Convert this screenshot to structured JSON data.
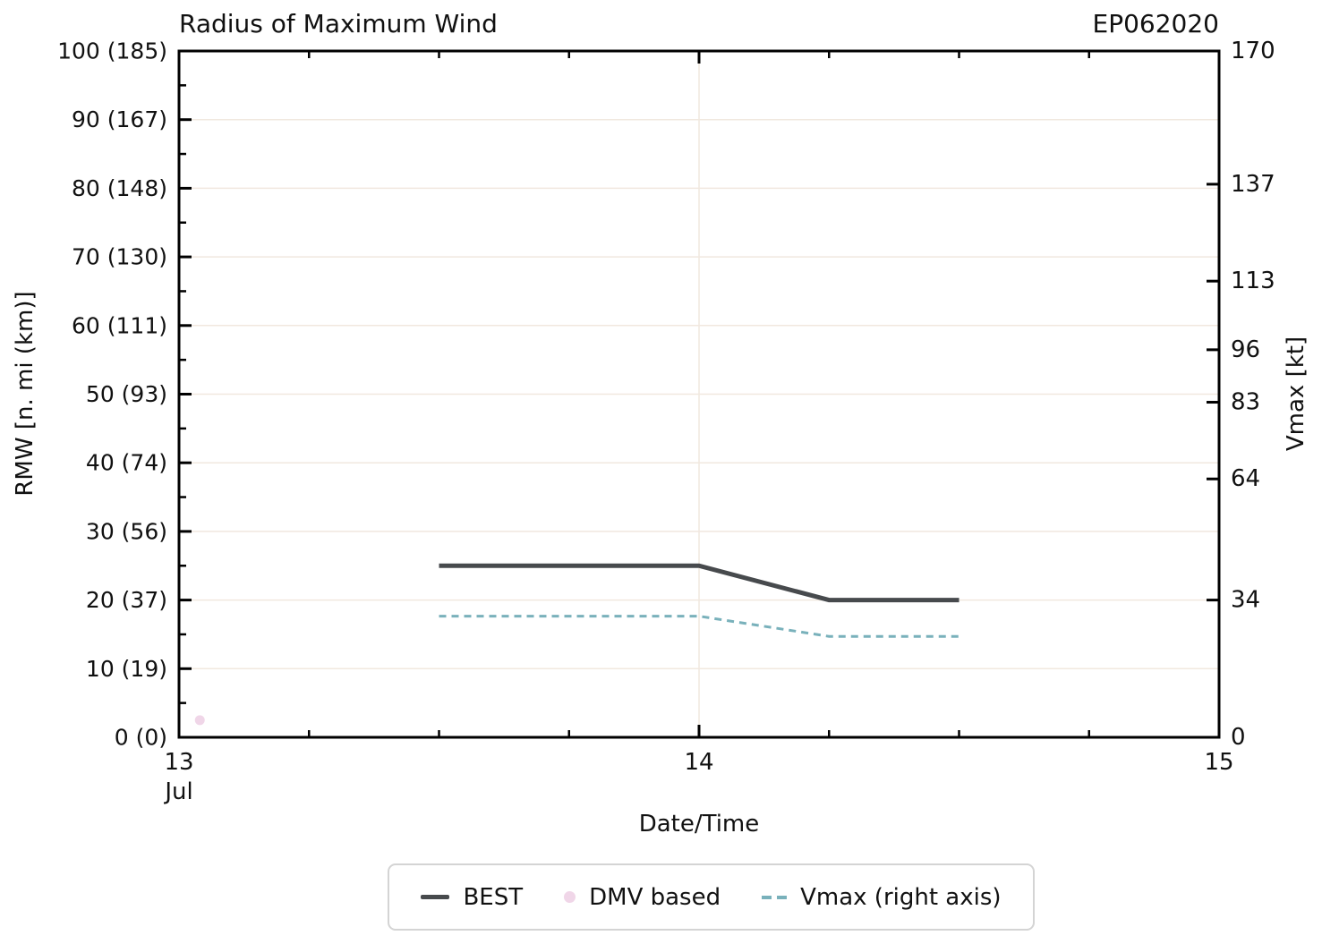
{
  "header": {
    "title": "Radius of Maximum Wind",
    "storm_id": "EP062020"
  },
  "legend": {
    "items": [
      {
        "label": "BEST",
        "swatch": "line-swatch",
        "color": "#474a4d"
      },
      {
        "label": "DMV based",
        "swatch": "dot-swatch",
        "color": "#f0d6e8"
      },
      {
        "label": "Vmax (right axis)",
        "swatch": "dashes-swatch",
        "color": "#79b1bb"
      }
    ]
  },
  "chart_data": {
    "type": "line",
    "title": "Radius of Maximum Wind",
    "storm_id": "EP062020",
    "xlabel": "Date/Time",
    "ylabel_left": "RMW [n. mi (km)]",
    "ylabel_right": "Vmax [kt]",
    "grid": "on",
    "grid_color": "#f1e8df",
    "legend_position": "bottom-center",
    "x_domain": [
      13,
      15
    ],
    "x_minor_step": 0.25,
    "x_major_ticks": [
      {
        "value": 13,
        "label": "13",
        "sublabel": "Jul"
      },
      {
        "value": 14,
        "label": "14"
      },
      {
        "value": 15,
        "label": "15"
      }
    ],
    "y_left_domain": [
      0,
      100
    ],
    "y_left_minor_step": 5,
    "y_left_major_ticks": [
      {
        "value": 0,
        "label": "0 (0)"
      },
      {
        "value": 10,
        "label": "10 (19)"
      },
      {
        "value": 20,
        "label": "20 (37)"
      },
      {
        "value": 30,
        "label": "30 (56)"
      },
      {
        "value": 40,
        "label": "40 (74)"
      },
      {
        "value": 50,
        "label": "50 (93)"
      },
      {
        "value": 60,
        "label": "60 (111)"
      },
      {
        "value": 70,
        "label": "70 (130)"
      },
      {
        "value": 80,
        "label": "80 (148)"
      },
      {
        "value": 90,
        "label": "90 (167)"
      },
      {
        "value": 100,
        "label": "100 (185)"
      }
    ],
    "y_right_domain": [
      0,
      170
    ],
    "y_right_ticks": [
      0,
      34,
      64,
      83,
      96,
      113,
      137,
      170
    ],
    "series": [
      {
        "name": "BEST",
        "axis": "left",
        "style": "solid",
        "color": "#474a4d",
        "line_width": 5,
        "points": [
          [
            13.5,
            25
          ],
          [
            13.75,
            25
          ],
          [
            14.0,
            25
          ],
          [
            14.25,
            20
          ],
          [
            14.5,
            20
          ]
        ]
      },
      {
        "name": "DMV based",
        "axis": "left",
        "style": "scatter",
        "color": "#f0d6e8",
        "marker_radius": 5.5,
        "points": [
          [
            13.04,
            2.5
          ]
        ]
      },
      {
        "name": "Vmax (right axis)",
        "axis": "right",
        "style": "dashed",
        "color": "#79b1bb",
        "line_width": 3,
        "dash": "8 6",
        "points": [
          [
            13.5,
            30
          ],
          [
            13.75,
            30
          ],
          [
            14.0,
            30
          ],
          [
            14.25,
            25
          ],
          [
            14.5,
            25
          ]
        ]
      }
    ]
  }
}
